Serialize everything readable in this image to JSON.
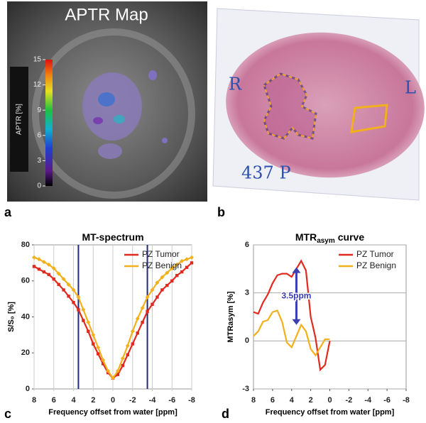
{
  "panel_labels": [
    "a",
    "b",
    "c",
    "d"
  ],
  "mri": {
    "title": "APTR Map",
    "colorbar_label": "APTR [%]",
    "colorbar_ticks": [
      0,
      3,
      6,
      9,
      12,
      15
    ]
  },
  "histology": {
    "annotations": [
      "R",
      "L",
      "437 P"
    ]
  },
  "chart_data": [
    {
      "type": "line",
      "title": "MT-spectrum",
      "x_label": "Frequency offset from water [ppm]",
      "y_label": "S/S₀ [%]",
      "x": [
        8,
        7.5,
        7,
        6.5,
        6,
        5.5,
        5,
        4.5,
        4,
        3.5,
        3,
        2.5,
        2,
        1.5,
        1,
        0.5,
        0,
        -0.5,
        -1,
        -1.5,
        -2,
        -2.5,
        -3,
        -3.5,
        -4,
        -4.5,
        -5,
        -5.5,
        -6,
        -6.5,
        -7,
        -7.5,
        -8
      ],
      "series": [
        {
          "name": "PZ Tumor",
          "color": "#e02a1f",
          "marker": "square",
          "values": [
            68,
            66.5,
            65,
            63.5,
            61,
            58,
            55,
            51.5,
            48,
            44,
            38,
            32,
            25,
            19.5,
            14,
            9,
            6,
            8,
            13,
            19,
            25,
            31,
            37,
            43,
            47,
            51,
            55,
            57.5,
            60,
            63,
            65,
            67.5,
            70
          ]
        },
        {
          "name": "PZ Benign",
          "color": "#f2b01c",
          "marker": "diamond",
          "values": [
            73,
            72,
            70.5,
            69,
            67,
            64,
            61,
            58,
            55,
            51,
            44,
            37,
            30,
            23,
            16,
            10,
            6,
            10,
            17,
            24,
            32,
            39,
            45,
            51,
            55,
            59,
            62,
            64.5,
            67,
            69,
            71,
            72,
            73
          ]
        }
      ],
      "vlines": [
        3.5,
        -3.5
      ],
      "vline_color": "#1f2a80",
      "xlim": [
        8,
        -8
      ],
      "xticks": [
        8,
        6,
        4,
        2,
        0,
        -2,
        -4,
        -6,
        -8
      ],
      "ylim": [
        0,
        80
      ],
      "yticks": [
        0,
        20,
        40,
        60,
        80
      ],
      "grid": "x",
      "legend": "upper right"
    },
    {
      "type": "line",
      "title": "MTR",
      "title_sub": "asym",
      "title_rest": "curve",
      "x_label": "Frequency offset from water [ppm]",
      "y_label": "MTRasym [%]",
      "x": [
        8,
        7.5,
        7,
        6.5,
        6,
        5.5,
        5,
        4.5,
        4,
        3.5,
        3,
        2.5,
        2,
        1.5,
        1,
        0.5,
        0
      ],
      "series": [
        {
          "name": "PZ Tumor",
          "color": "#e02a1f",
          "values": [
            1.8,
            1.7,
            2.4,
            2.9,
            3.6,
            4.1,
            4.2,
            4.2,
            4.0,
            4.5,
            5.0,
            4.4,
            1.5,
            0.2,
            -1.8,
            -1.5,
            0.0
          ]
        },
        {
          "name": "PZ Benign",
          "color": "#f2b01c",
          "values": [
            0.3,
            0.6,
            1.2,
            1.3,
            1.8,
            1.9,
            1.2,
            -0.1,
            -0.4,
            0.3,
            1.0,
            0.6,
            -0.5,
            -0.9,
            -0.4,
            0.1,
            0.1
          ]
        }
      ],
      "annotation": {
        "text": "3.5ppm",
        "x": 3.5,
        "y_from": 1.0,
        "y_to": 4.6,
        "color": "#3a3fb0"
      },
      "xlim": [
        8,
        -8
      ],
      "xticks": [
        8,
        6,
        4,
        2,
        0,
        -2,
        -4,
        -6,
        -8
      ],
      "ylim": [
        -3,
        6
      ],
      "yticks": [
        -3,
        0,
        3,
        6
      ],
      "grid": "y",
      "legend": "upper right"
    }
  ]
}
